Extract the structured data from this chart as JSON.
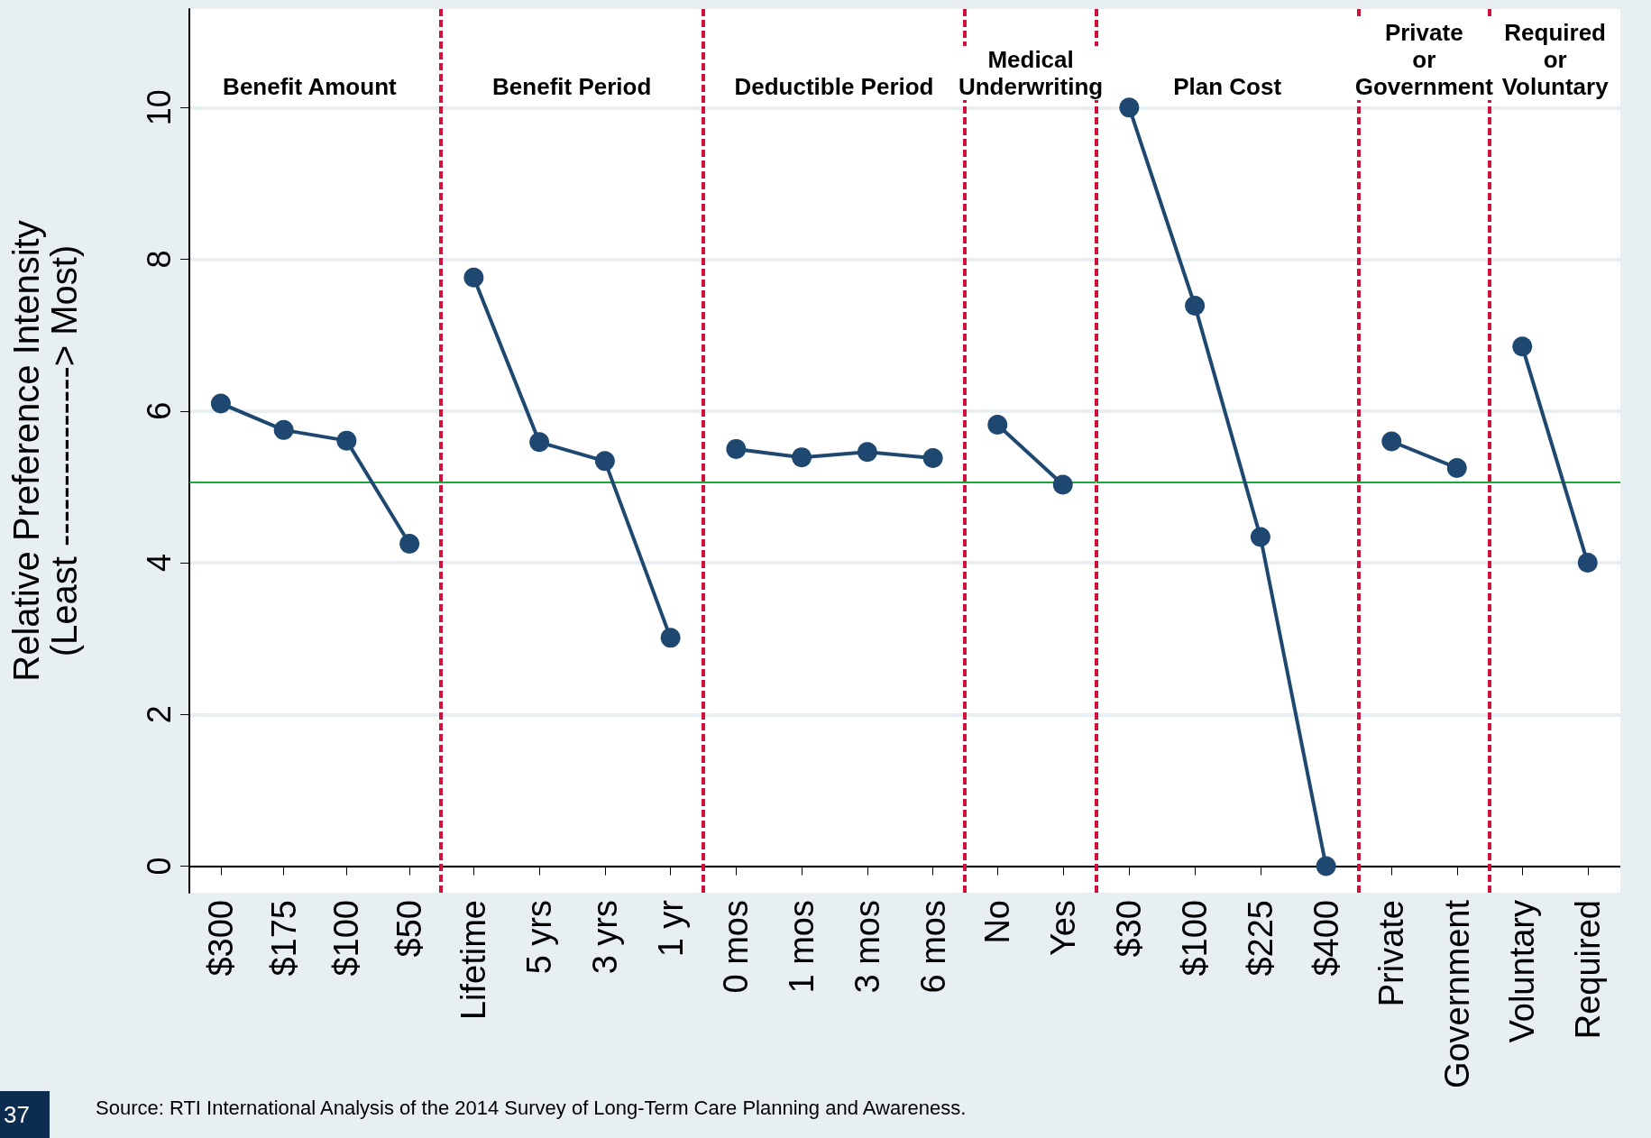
{
  "chart_data": [
    {
      "type": "line",
      "title": "Benefit Amount",
      "ylabel": "Relative Preference Intensity\n(Least ---------------> Most)",
      "categories": [
        "$300",
        "$175",
        "$100",
        "$50"
      ],
      "ylim": [
        -0.35,
        11.3
      ],
      "yticks": [
        0,
        2,
        4,
        6,
        8,
        10
      ],
      "grid": "y",
      "marker": "circle",
      "line_style": "solid",
      "series": [
        {
          "color": "#1f4870",
          "values": [
            6.1,
            5.75,
            5.61,
            4.25
          ]
        }
      ],
      "ref_lines": [
        {
          "axis": "y",
          "value": 5.06,
          "color": "#1aa83a"
        }
      ],
      "annotations": [
        "Source:  RTI International Analysis of the 2014 Survey of Long-Term Care Planning and Awareness.",
        "37"
      ]
    },
    {
      "type": "line",
      "title": "Benefit Period",
      "categories": [
        "Lifetime",
        "5 yrs",
        "3 yrs",
        "1 yr"
      ],
      "ylim": [
        -0.35,
        11.3
      ],
      "yticks": [
        0,
        2,
        4,
        6,
        8,
        10
      ],
      "tick_labels": "x",
      "grid": "y",
      "marker": "circle",
      "line_style": "solid",
      "series": [
        {
          "color": "#1f4870",
          "values": [
            7.76,
            5.59,
            5.34,
            3.01
          ]
        }
      ],
      "ref_lines": [
        {
          "axis": "y",
          "value": 5.06,
          "color": "#1aa83a"
        }
      ]
    },
    {
      "type": "line",
      "title": "Deductible Period",
      "categories": [
        "0 mos",
        "1 mos",
        "3 mos",
        "6 mos"
      ],
      "ylim": [
        -0.35,
        11.3
      ],
      "yticks": [
        0,
        2,
        4,
        6,
        8,
        10
      ],
      "tick_labels": "x",
      "grid": "y",
      "marker": "circle",
      "line_style": "solid",
      "series": [
        {
          "color": "#1f4870",
          "values": [
            5.5,
            5.39,
            5.46,
            5.38
          ]
        }
      ],
      "ref_lines": [
        {
          "axis": "y",
          "value": 5.06,
          "color": "#1aa83a"
        }
      ]
    },
    {
      "type": "line",
      "title": "Medical\nUnderwriting",
      "categories": [
        "No",
        "Yes"
      ],
      "ylim": [
        -0.35,
        11.3
      ],
      "yticks": [
        0,
        2,
        4,
        6,
        8,
        10
      ],
      "tick_labels": "x",
      "grid": "y",
      "marker": "circle",
      "line_style": "solid",
      "series": [
        {
          "color": "#1f4870",
          "values": [
            5.82,
            5.03
          ]
        }
      ],
      "ref_lines": [
        {
          "axis": "y",
          "value": 5.06,
          "color": "#1aa83a"
        }
      ]
    },
    {
      "type": "line",
      "title": "Plan Cost",
      "categories": [
        "$30",
        "$100",
        "$225",
        "$400"
      ],
      "ylim": [
        -0.35,
        11.3
      ],
      "yticks": [
        0,
        2,
        4,
        6,
        8,
        10
      ],
      "tick_labels": "x",
      "grid": "y",
      "marker": "circle",
      "line_style": "solid",
      "series": [
        {
          "color": "#1f4870",
          "values": [
            10,
            7.39,
            4.34,
            0
          ]
        }
      ],
      "ref_lines": [
        {
          "axis": "y",
          "value": 5.06,
          "color": "#1aa83a"
        }
      ]
    },
    {
      "type": "line",
      "title": "Private\nor\nGovernment",
      "categories": [
        "Private",
        "Government"
      ],
      "ylim": [
        -0.35,
        11.3
      ],
      "yticks": [
        0,
        2,
        4,
        6,
        8,
        10
      ],
      "tick_labels": "x",
      "grid": "y",
      "marker": "circle",
      "line_style": "solid",
      "series": [
        {
          "color": "#1f4870",
          "values": [
            5.6,
            5.25
          ]
        }
      ],
      "ref_lines": [
        {
          "axis": "y",
          "value": 5.06,
          "color": "#1aa83a"
        }
      ]
    },
    {
      "type": "line",
      "title": "Required\nor\nVoluntary",
      "categories": [
        "Voluntary",
        "Required"
      ],
      "ylim": [
        -0.35,
        11.3
      ],
      "yticks": [
        0,
        2,
        4,
        6,
        8,
        10
      ],
      "tick_labels": "x",
      "grid": "y",
      "marker": "circle",
      "line_style": "solid",
      "series": [
        {
          "color": "#1f4870",
          "values": [
            6.85,
            4.0
          ]
        }
      ],
      "ref_lines": [
        {
          "axis": "y",
          "value": 5.06,
          "color": "#1aa83a"
        }
      ]
    }
  ]
}
